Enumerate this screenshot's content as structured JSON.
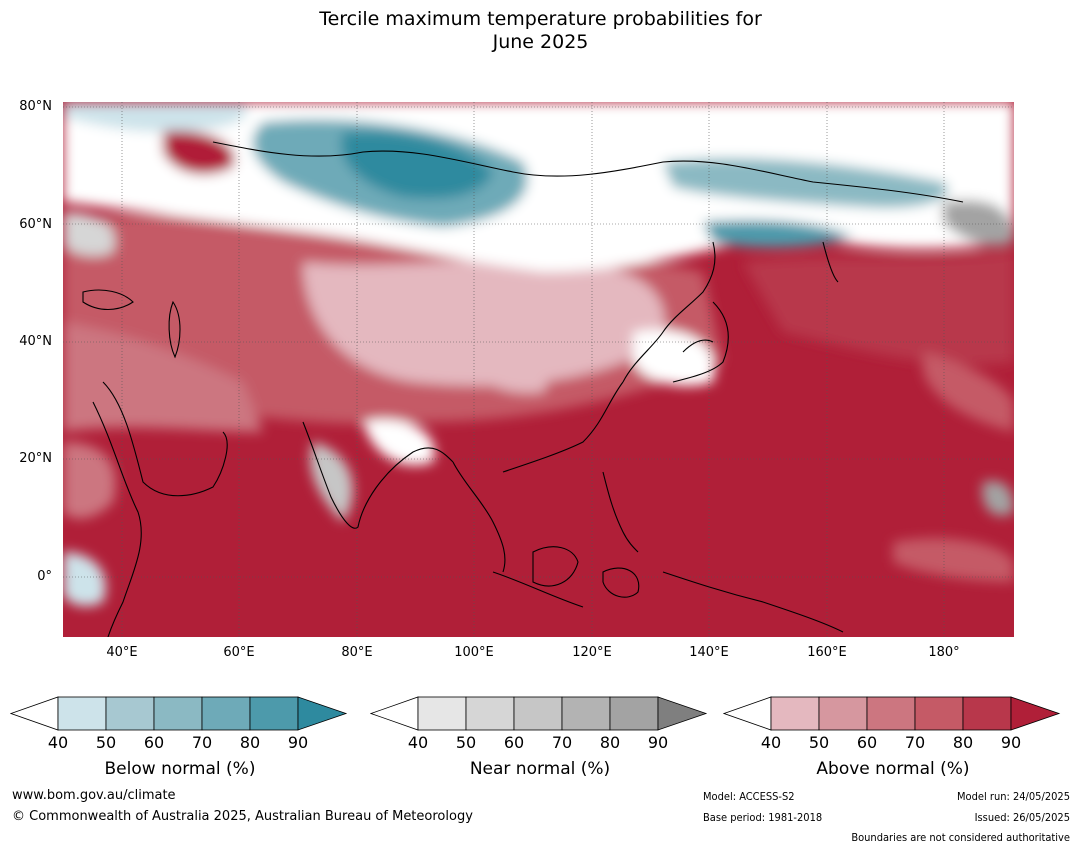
{
  "title": {
    "line1": "Tercile maximum temperature probabilities for",
    "line2": "June 2025"
  },
  "map": {
    "lat_labels": [
      "80°N",
      "60°N",
      "40°N",
      "20°N",
      "0°"
    ],
    "lon_labels": [
      "40°E",
      "60°E",
      "80°E",
      "100°E",
      "120°E",
      "140°E",
      "160°E",
      "180°"
    ]
  },
  "colorbars": [
    {
      "name": "below",
      "label": "Below normal (%)",
      "ticks": [
        "40",
        "50",
        "60",
        "70",
        "80",
        "90"
      ],
      "colors": [
        "#cde3ea",
        "#a7c8d1",
        "#8bb9c3",
        "#6eaab8",
        "#4d9aab",
        "#2e8a9f"
      ]
    },
    {
      "name": "near",
      "label": "Near normal (%)",
      "ticks": [
        "40",
        "50",
        "60",
        "70",
        "80",
        "90"
      ],
      "colors": [
        "#e6e6e6",
        "#d6d6d6",
        "#c6c6c6",
        "#b3b3b3",
        "#a3a3a3",
        "#7f7f7f"
      ]
    },
    {
      "name": "above",
      "label": "Above normal (%)",
      "ticks": [
        "40",
        "50",
        "60",
        "70",
        "80",
        "90"
      ],
      "colors": [
        "#e4b8bf",
        "#d6979f",
        "#cc7680",
        "#c55a66",
        "#b8374b",
        "#b01f38"
      ]
    }
  ],
  "footer": {
    "url": "www.bom.gov.au/climate",
    "copyright": "© Commonwealth of Australia 2025, Australian Bureau of Meteorology",
    "model": "Model: ACCESS-S2",
    "base_period": "Base period: 1981-2018",
    "model_run": "Model run: 24/05/2025",
    "issued": "Issued: 26/05/2025",
    "disclaimer": "Boundaries are not considered authoritative"
  }
}
